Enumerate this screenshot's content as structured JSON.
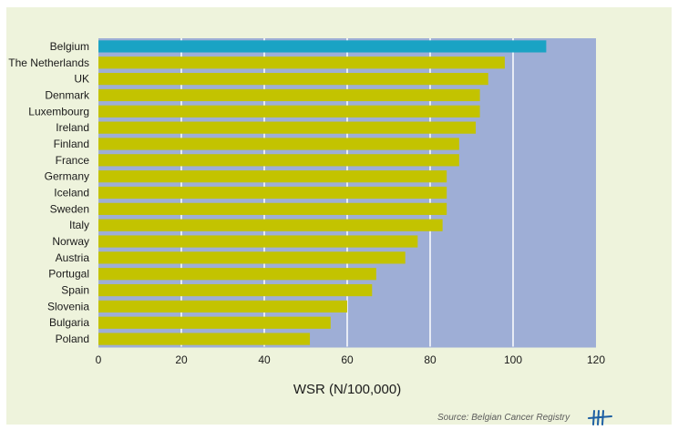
{
  "chart_data": {
    "type": "bar",
    "orientation": "horizontal",
    "categories": [
      "Belgium",
      "The Netherlands",
      "UK",
      "Denmark",
      "Luxembourg",
      "Ireland",
      "Finland",
      "France",
      "Germany",
      "Iceland",
      "Sweden",
      "Italy",
      "Norway",
      "Austria",
      "Portugal",
      "Spain",
      "Slovenia",
      "Bulgaria",
      "Poland"
    ],
    "values": [
      108,
      98,
      94,
      92,
      92,
      91,
      87,
      87,
      84,
      84,
      84,
      83,
      77,
      74,
      67,
      66,
      60,
      56,
      51
    ],
    "highlight": "Belgium",
    "xlabel": "WSR (N/100,000)",
    "ylabel": "",
    "xlim": [
      0,
      120
    ],
    "xticks": [
      0,
      20,
      40,
      60,
      80,
      100,
      120
    ],
    "grid": "vertical",
    "legend": "none",
    "colors": {
      "bar": "#c3c300",
      "highlight": "#1aa3c4",
      "plot_background": "#9eaed6"
    }
  },
  "source": "Source: Belgian Cancer Registry"
}
